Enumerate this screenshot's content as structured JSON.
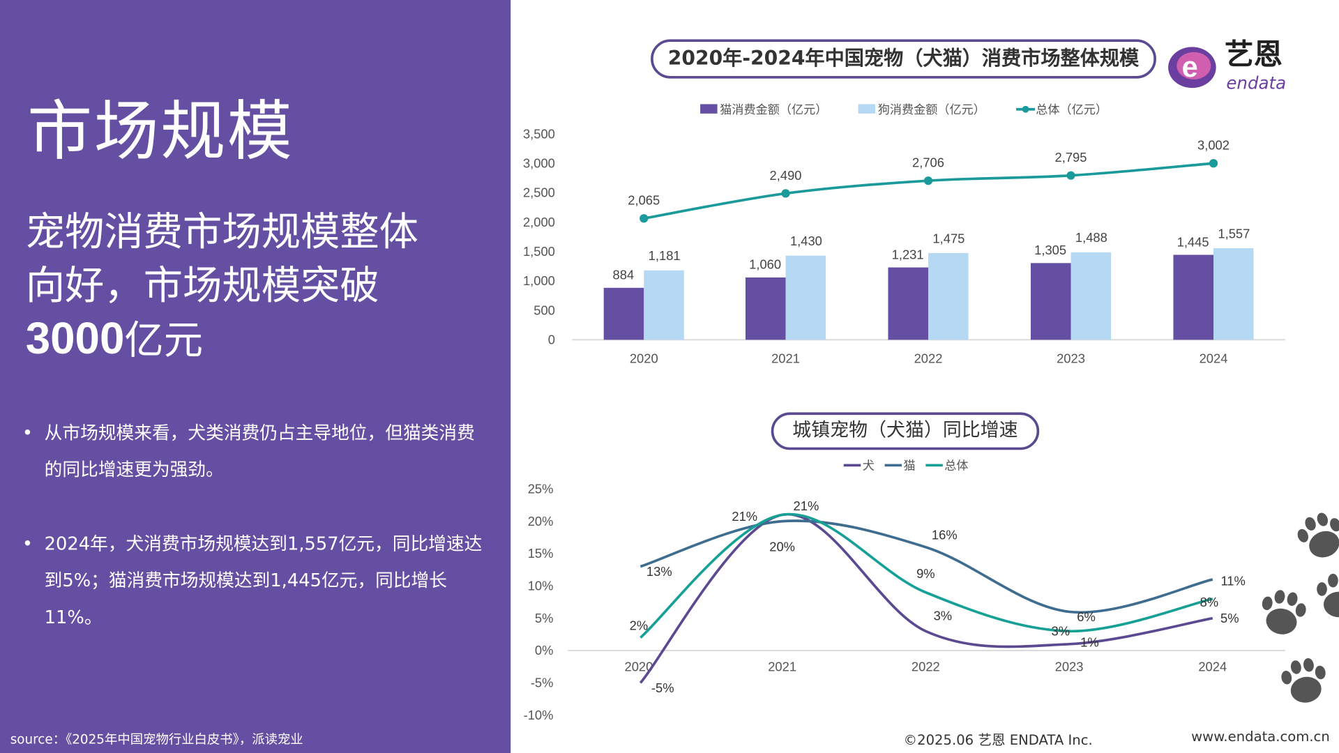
{
  "left": {
    "title": "市场规模",
    "headline_line1": "宠物消费市场规模整体",
    "headline_line2": "向好，市场规模突破",
    "headline_number": "3000",
    "headline_unit": "亿元",
    "bullets": [
      "从市场规模来看，犬类消费仍占主导地位，但猫类消费的同比增速更为强劲。",
      "2024年，犬消费市场规模达到1,557亿元，同比增速达到5%；猫消费市场规模达到1,445亿元，同比增长11%。"
    ],
    "source": "source：《2025年中国宠物行业白皮书》，派读宠业"
  },
  "logo": {
    "text_cn": "艺恩",
    "text_en": "endata"
  },
  "footer": {
    "copyright": "©2025.06  艺恩 ENDATA Inc.",
    "website": "www.endata.com.cn"
  },
  "colors": {
    "background": "#654fa2",
    "cat_bar": "#654fa2",
    "dog_bar": "#b5d9f2",
    "total_line": "#1a9a9a",
    "dog_growth": "#5b4a91",
    "cat_growth": "#3f6d90",
    "total_growth": "#17a096"
  },
  "chart_data": [
    {
      "type": "bar",
      "title": "2020年-2024年中国宠物（犬猫）消费市场整体规模",
      "categories": [
        "2020",
        "2021",
        "2022",
        "2023",
        "2024"
      ],
      "series": [
        {
          "name": "猫消费金额（亿元）",
          "type": "bar",
          "values": [
            884,
            1060,
            1231,
            1305,
            1445
          ],
          "labels": [
            "884",
            "1,060",
            "1,231",
            "1,305",
            "1,445"
          ]
        },
        {
          "name": "狗消费金额（亿元）",
          "type": "bar",
          "values": [
            1181,
            1430,
            1475,
            1488,
            1557
          ],
          "labels": [
            "1,181",
            "1,430",
            "1,475",
            "1,488",
            "1,557"
          ]
        },
        {
          "name": "总体（亿元）",
          "type": "line",
          "values": [
            2065,
            2490,
            2706,
            2795,
            3002
          ],
          "labels": [
            "2,065",
            "2,490",
            "2,706",
            "2,795",
            "3,002"
          ]
        }
      ],
      "yticks": [
        "0",
        "500",
        "1,000",
        "1,500",
        "2,000",
        "2,500",
        "3,000",
        "3,500"
      ],
      "ylim": [
        0,
        3500
      ],
      "legend": "top",
      "grid": false
    },
    {
      "type": "line",
      "title": "城镇宠物（犬猫）同比增速",
      "categories": [
        "2020",
        "2021",
        "2022",
        "2023",
        "2024"
      ],
      "series": [
        {
          "name": "犬",
          "values": [
            -5,
            21,
            3,
            1,
            5
          ],
          "labels": [
            "-5%",
            "21%",
            "3%",
            "1%",
            "5%"
          ]
        },
        {
          "name": "猫",
          "values": [
            13,
            20,
            16,
            6,
            11
          ],
          "labels": [
            "13%",
            "20%",
            "16%",
            "6%",
            "11%"
          ]
        },
        {
          "name": "总体",
          "values": [
            2,
            21,
            9,
            3,
            8
          ],
          "labels": [
            "2%",
            "21%",
            "9%",
            "3%",
            "8%"
          ]
        }
      ],
      "yticks": [
        "25%",
        "20%",
        "15%",
        "10%",
        "5%",
        "0%",
        "-5%",
        "-10%"
      ],
      "ylim": [
        -10,
        25
      ],
      "legend": "top",
      "grid": false,
      "smooth": true
    }
  ]
}
